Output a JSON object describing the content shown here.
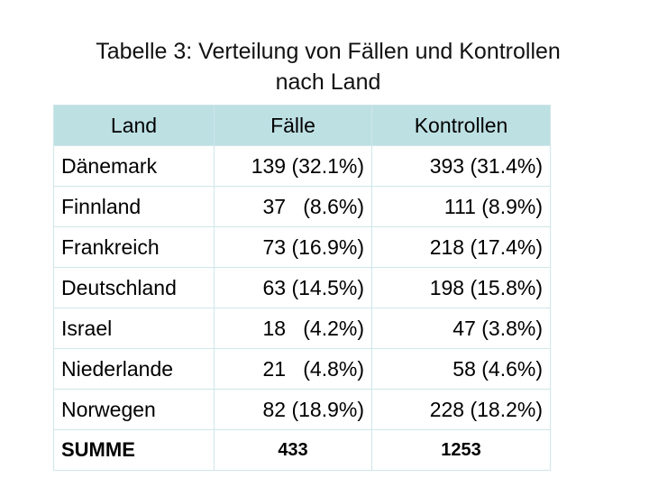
{
  "title": [
    "Tabelle 3: Verteilung von Fällen und Kontrollen",
    "nach Land"
  ],
  "table": {
    "headers": [
      "Land",
      "Fälle",
      "Kontrollen"
    ],
    "rows": [
      {
        "land": "Dänemark",
        "faelle": "139 (32.1%)",
        "kontrollen": "393 (31.4%)"
      },
      {
        "land": "Finnland",
        "faelle": "37   (8.6%)",
        "kontrollen": "111 (8.9%)"
      },
      {
        "land": "Frankreich",
        "faelle": "73 (16.9%)",
        "kontrollen": "218 (17.4%)"
      },
      {
        "land": "Deutschland",
        "faelle": "63 (14.5%)",
        "kontrollen": "198 (15.8%)"
      },
      {
        "land": "Israel",
        "faelle": "18   (4.2%)",
        "kontrollen": "47 (3.8%)"
      },
      {
        "land": "Niederlande",
        "faelle": "21   (4.8%)",
        "kontrollen": "58 (4.6%)"
      },
      {
        "land": "Norwegen",
        "faelle": "82 (18.9%)",
        "kontrollen": "228 (18.2%)"
      }
    ],
    "summe": {
      "label": "SUMME",
      "faelle": "433",
      "kontrollen": "1253"
    }
  },
  "colors": {
    "header_bg": "#bde0e3",
    "grid": "#cfe6e8"
  }
}
